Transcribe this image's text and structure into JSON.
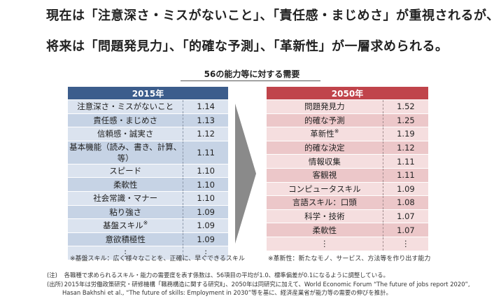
{
  "headline": {
    "line1": "現在は「注意深さ・ミスがないこと」、「責任感・まじめさ」が重視されるが、",
    "line2": "将来は「問題発見力」、「的確な予測」、「革新性」が一層求められる。"
  },
  "subtitle": "56の能力等に対する需要",
  "table_2015": {
    "header": "2015年",
    "rows": [
      {
        "item": "注意深さ・ミスがないこと",
        "value": "1.14",
        "mark": ""
      },
      {
        "item": "責任感・まじめさ",
        "value": "1.13",
        "mark": ""
      },
      {
        "item": "信頼感・誠実さ",
        "value": "1.12",
        "mark": ""
      },
      {
        "item": "基本機能（読み、書き、計算、等）",
        "value": "1.11",
        "mark": ""
      },
      {
        "item": "スピード",
        "value": "1.10",
        "mark": ""
      },
      {
        "item": "柔軟性",
        "value": "1.10",
        "mark": ""
      },
      {
        "item": "社会常識・マナー",
        "value": "1.10",
        "mark": ""
      },
      {
        "item": "粘り強さ",
        "value": "1.09",
        "mark": ""
      },
      {
        "item": "基盤スキル",
        "value": "1.09",
        "mark": "※"
      },
      {
        "item": "意欲積極性",
        "value": "1.09",
        "mark": ""
      },
      {
        "item": "⋮",
        "value": "⋮",
        "mark": ""
      }
    ],
    "note": "※基盤スキル：広く様々なことを、正確に、早くできるスキル"
  },
  "table_2050": {
    "header": "2050年",
    "rows": [
      {
        "item": "問題発見力",
        "value": "1.52",
        "mark": ""
      },
      {
        "item": "的確な予測",
        "value": "1.25",
        "mark": ""
      },
      {
        "item": "革新性",
        "value": "1.19",
        "mark": "※"
      },
      {
        "item": "的確な決定",
        "value": "1.12",
        "mark": ""
      },
      {
        "item": "情報収集",
        "value": "1.11",
        "mark": ""
      },
      {
        "item": "客観視",
        "value": "1.11",
        "mark": ""
      },
      {
        "item": "コンピュータスキル",
        "value": "1.09",
        "mark": ""
      },
      {
        "item": "言語スキル：口頭",
        "value": "1.08",
        "mark": ""
      },
      {
        "item": "科学・技術",
        "value": "1.07",
        "mark": ""
      },
      {
        "item": "柔軟性",
        "value": "1.07",
        "mark": ""
      },
      {
        "item": "⋮",
        "value": "⋮",
        "mark": ""
      }
    ],
    "note": "※革新性：新たなモノ、サービス、方法等を作り出す能力"
  },
  "footnotes": {
    "note_label": "(注)",
    "note_text": "各職種で求められるスキル・能力の需要度を表す係数は、56項目の平均が1.0、標準偏差が0.1になるように調整している。",
    "source_label": "(出所)",
    "source_text": "2015年は労働政策研究・研修機構「職務構造に関する研究Ⅱ」、2050年は同研究に加えて、World Economic Forum “The future of jobs report 2020”,",
    "source_text_2": "Hasan Bakhshi et al., “The future of skills: Employment in 2030”等を基に、経済産業省が能力等の需要の伸びを推計。"
  },
  "colors": {
    "header_2015": "#3c5d8c",
    "header_2050": "#c0444b",
    "arrow": "#8a8a8a"
  }
}
